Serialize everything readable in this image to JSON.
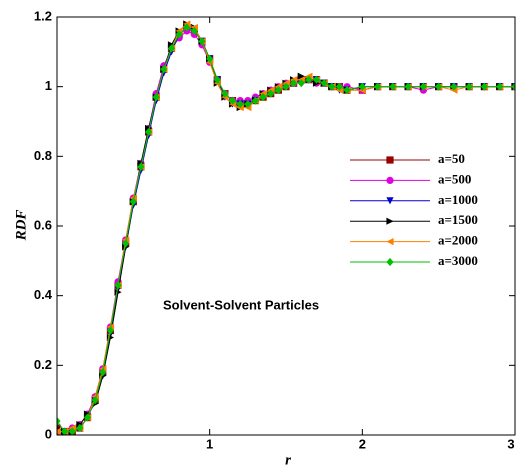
{
  "chart_data": {
    "type": "line",
    "xlabel": "r",
    "ylabel": "RDF",
    "annotation": "Solvent-Solvent Particles",
    "xlim": [
      0,
      3
    ],
    "ylim": [
      0,
      1.2
    ],
    "xticks": [
      1,
      2,
      3
    ],
    "yticks": [
      0,
      0.2,
      0.4,
      0.6,
      0.8,
      1,
      1.2
    ],
    "x": [
      0,
      0.05,
      0.1,
      0.15,
      0.2,
      0.25,
      0.3,
      0.35,
      0.4,
      0.45,
      0.5,
      0.55,
      0.6,
      0.65,
      0.7,
      0.75,
      0.8,
      0.85,
      0.9,
      0.95,
      1.0,
      1.05,
      1.1,
      1.15,
      1.2,
      1.25,
      1.3,
      1.35,
      1.4,
      1.45,
      1.5,
      1.55,
      1.6,
      1.65,
      1.7,
      1.75,
      1.8,
      1.85,
      1.9,
      2.0,
      2.1,
      2.2,
      2.3,
      2.4,
      2.5,
      2.6,
      2.7,
      2.8,
      2.9,
      3.0
    ],
    "series": [
      {
        "name": "a=50",
        "color": "#9b0000",
        "marker": "square",
        "values": [
          0.02,
          0.01,
          0.01,
          0.02,
          0.05,
          0.1,
          0.18,
          0.3,
          0.43,
          0.55,
          0.67,
          0.77,
          0.87,
          0.97,
          1.05,
          1.11,
          1.15,
          1.17,
          1.16,
          1.13,
          1.08,
          1.02,
          0.98,
          0.96,
          0.95,
          0.95,
          0.96,
          0.97,
          0.98,
          0.99,
          1.0,
          1.01,
          1.02,
          1.02,
          1.02,
          1.01,
          1.0,
          1.0,
          0.99,
          0.99,
          1.0,
          1.0,
          1.0,
          1.0,
          1.0,
          1.0,
          1.0,
          1.0,
          1.0,
          1.0
        ]
      },
      {
        "name": "a=500",
        "color": "#e000e0",
        "marker": "circle",
        "values": [
          0.01,
          0.01,
          0.02,
          0.03,
          0.06,
          0.11,
          0.19,
          0.31,
          0.44,
          0.56,
          0.68,
          0.78,
          0.88,
          0.98,
          1.06,
          1.11,
          1.14,
          1.16,
          1.15,
          1.12,
          1.07,
          1.02,
          0.98,
          0.96,
          0.96,
          0.96,
          0.97,
          0.98,
          0.99,
          1.0,
          1.01,
          1.01,
          1.02,
          1.02,
          1.01,
          1.01,
          1.0,
          1.0,
          1.0,
          0.99,
          1.0,
          1.0,
          1.0,
          0.99,
          1.0,
          1.0,
          1.0,
          1.0,
          1.0,
          1.0
        ]
      },
      {
        "name": "a=1000",
        "color": "#0000d0",
        "marker": "down",
        "values": [
          0.01,
          0.0,
          0.01,
          0.02,
          0.05,
          0.1,
          0.17,
          0.29,
          0.42,
          0.54,
          0.66,
          0.76,
          0.86,
          0.96,
          1.04,
          1.1,
          1.15,
          1.17,
          1.16,
          1.13,
          1.08,
          1.02,
          0.97,
          0.95,
          0.95,
          0.95,
          0.96,
          0.97,
          0.98,
          0.99,
          1.0,
          1.01,
          1.02,
          1.02,
          1.02,
          1.01,
          1.0,
          0.99,
          0.99,
          1.0,
          1.0,
          1.0,
          1.0,
          1.0,
          1.0,
          1.0,
          1.0,
          1.0,
          1.0,
          1.0
        ]
      },
      {
        "name": "a=1500",
        "color": "#000000",
        "marker": "right",
        "values": [
          0.02,
          0.01,
          0.01,
          0.03,
          0.06,
          0.09,
          0.17,
          0.28,
          0.41,
          0.54,
          0.67,
          0.78,
          0.88,
          0.97,
          1.05,
          1.12,
          1.16,
          1.18,
          1.17,
          1.13,
          1.08,
          1.01,
          0.97,
          0.95,
          0.94,
          0.95,
          0.96,
          0.98,
          0.99,
          1.0,
          1.01,
          1.02,
          1.03,
          1.02,
          1.01,
          1.01,
          1.0,
          1.0,
          0.99,
          1.0,
          1.0,
          1.0,
          1.0,
          1.0,
          1.0,
          1.0,
          1.0,
          1.0,
          1.0,
          1.0
        ]
      },
      {
        "name": "a=2000",
        "color": "#ff8000",
        "marker": "left",
        "values": [
          0.01,
          0.01,
          0.02,
          0.02,
          0.05,
          0.11,
          0.19,
          0.31,
          0.43,
          0.56,
          0.68,
          0.77,
          0.87,
          0.97,
          1.05,
          1.11,
          1.16,
          1.18,
          1.17,
          1.13,
          1.07,
          1.01,
          0.97,
          0.95,
          0.94,
          0.94,
          0.96,
          0.98,
          0.99,
          1.0,
          1.01,
          1.02,
          1.02,
          1.03,
          1.02,
          1.01,
          1.0,
          0.99,
          0.99,
          0.99,
          1.0,
          1.0,
          1.0,
          1.0,
          1.0,
          0.99,
          1.0,
          1.0,
          1.0,
          1.0
        ]
      },
      {
        "name": "a=3000",
        "color": "#00c000",
        "marker": "diamond",
        "values": [
          0.04,
          0.01,
          0.01,
          0.02,
          0.05,
          0.1,
          0.18,
          0.3,
          0.43,
          0.55,
          0.67,
          0.77,
          0.87,
          0.97,
          1.05,
          1.11,
          1.15,
          1.17,
          1.16,
          1.13,
          1.08,
          1.02,
          0.98,
          0.96,
          0.95,
          0.95,
          0.96,
          0.97,
          0.98,
          0.99,
          1.0,
          1.01,
          1.01,
          1.02,
          1.02,
          1.01,
          1.0,
          1.0,
          0.99,
          1.0,
          1.0,
          1.0,
          1.0,
          1.0,
          1.0,
          1.0,
          1.0,
          1.0,
          1.0,
          1.0
        ]
      }
    ]
  }
}
